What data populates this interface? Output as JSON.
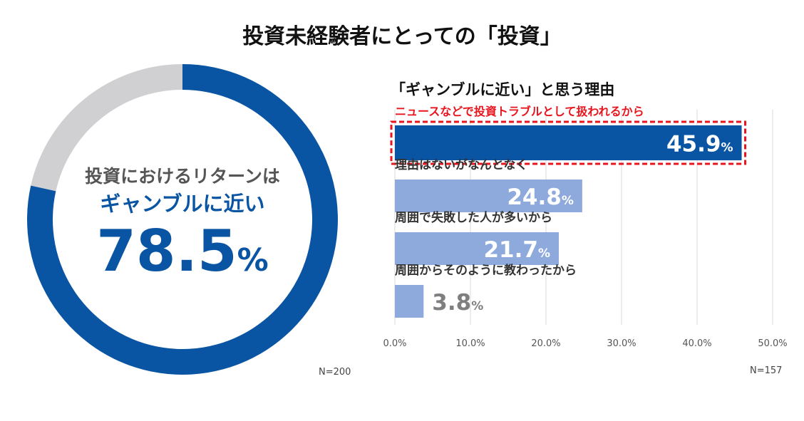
{
  "title": "投資未経験者にとっての「投資」",
  "chart_data": [
    {
      "type": "pie",
      "variant": "donut",
      "slices": [
        {
          "label": "ギャンブルに近い",
          "value": 78.5,
          "color": "#0a55a3"
        },
        {
          "label": "",
          "value": 21.5,
          "color": "#d0cfd1"
        }
      ],
      "center_line1": "投資におけるリターンは",
      "center_line2": "ギャンブルに近い",
      "center_value": "78.5",
      "center_unit": "%",
      "n": "N=200"
    },
    {
      "type": "bar",
      "orientation": "horizontal",
      "title": "「ギャンブルに近い」と思う理由",
      "categories": [
        "ニュースなどで投資トラブルとして扱われるから",
        "理由はないがなんとなく",
        "周囲で失敗した人が多いから",
        "周囲からそのように教わったから"
      ],
      "values": [
        45.9,
        24.8,
        21.7,
        3.8
      ],
      "value_labels": [
        "45.9",
        "24.8",
        "21.7",
        "3.8"
      ],
      "value_unit": "%",
      "highlight_index": 0,
      "highlight_color": "#e8141e",
      "bar_colors": [
        "#0a55a3",
        "#8eaadc",
        "#8eaadc",
        "#8eaadc"
      ],
      "xlim": [
        0,
        50
      ],
      "x_ticks": [
        "0.0%",
        "10.0%",
        "20.0%",
        "30.0%",
        "40.0%",
        "50.0%"
      ],
      "grid": true,
      "n": "N=157"
    }
  ]
}
